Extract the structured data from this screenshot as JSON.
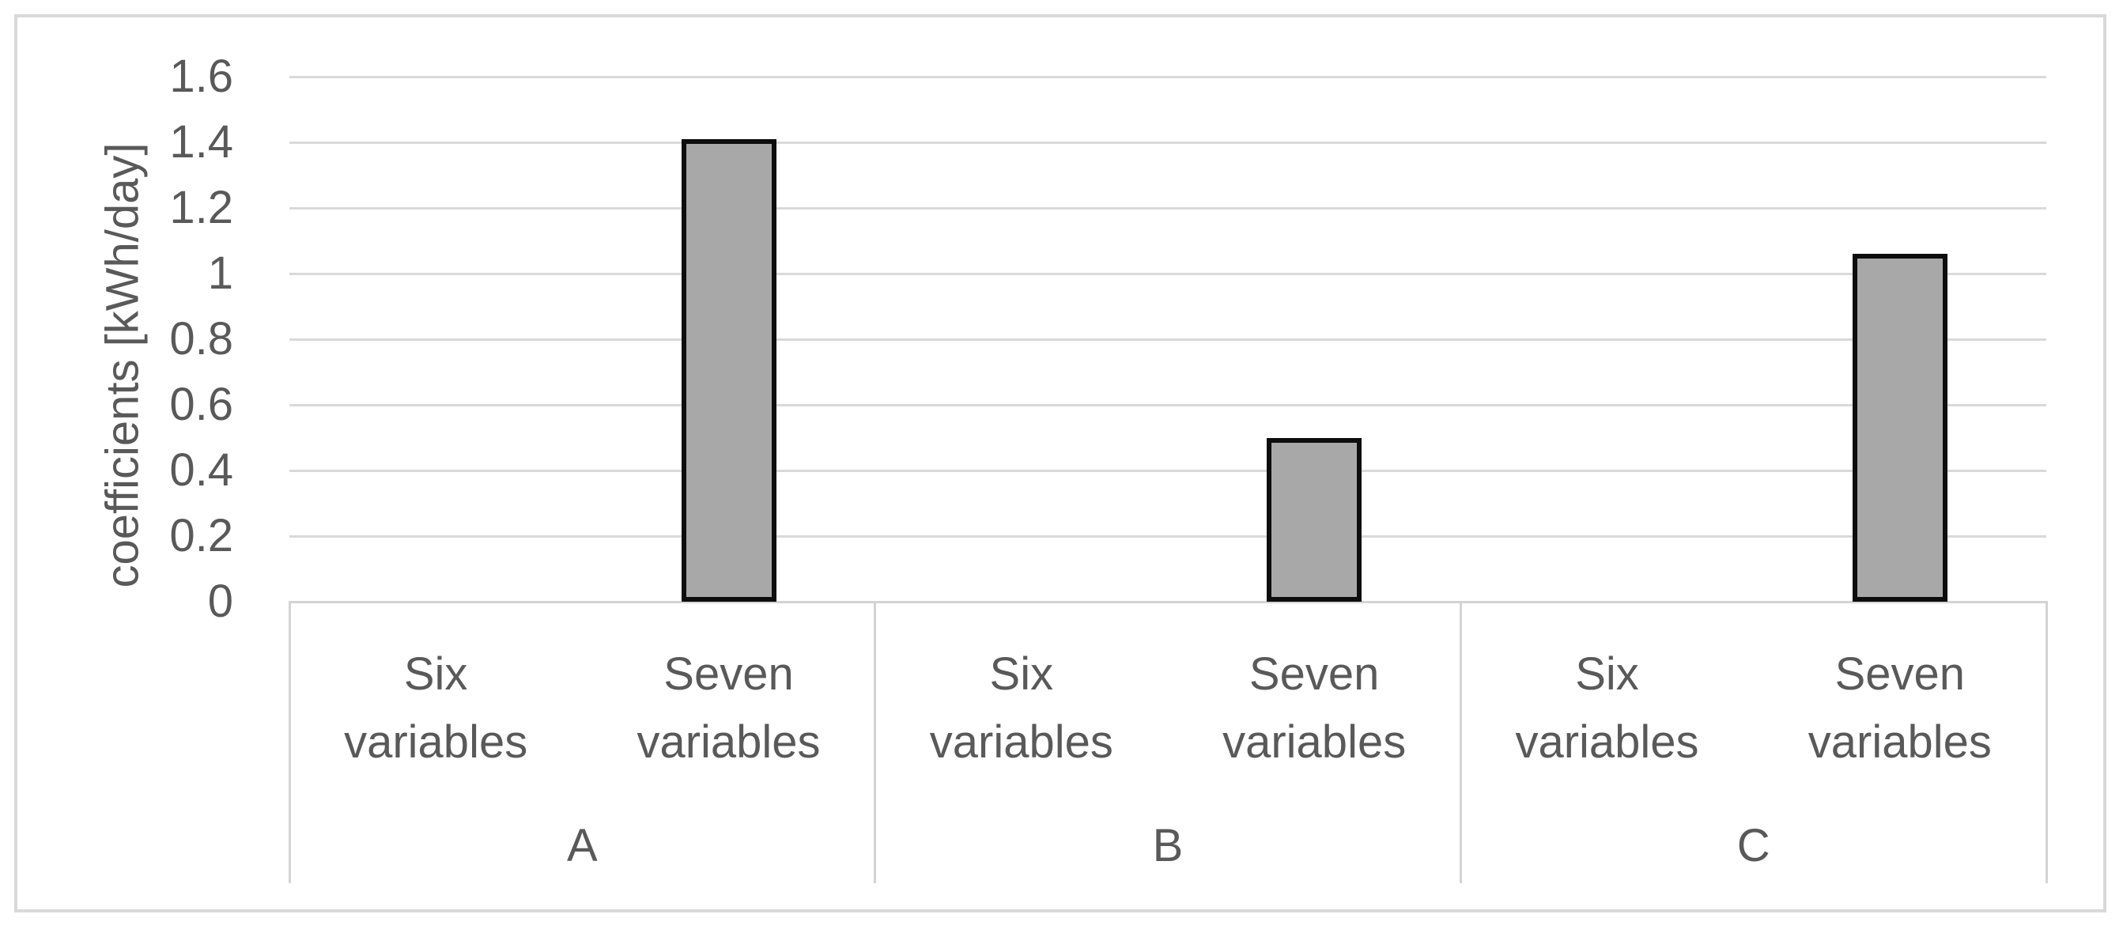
{
  "page": {
    "background_color": "#ffffff",
    "frame_border_color": "#d9d9d9"
  },
  "chart_data": {
    "type": "bar",
    "title": "",
    "xlabel": "",
    "ylabel": "coefficients [kWh/day]",
    "ylim": [
      0,
      1.6
    ],
    "ytick_step": 0.2,
    "y_tick_labels": [
      "1.6",
      "1.4",
      "1.2",
      "1",
      "0.8",
      "0.6",
      "0.4",
      "0.2",
      "0"
    ],
    "grid": true,
    "legend_position": "none",
    "groups": [
      "A",
      "B",
      "C"
    ],
    "categories_per_group": [
      "Six variables",
      "Seven variables"
    ],
    "series": [
      {
        "name": "Six variables",
        "values": [
          0,
          0,
          0
        ]
      },
      {
        "name": "Seven variables",
        "values": [
          1.41,
          0.5,
          1.06
        ]
      }
    ],
    "bar_fill_color": "#a8a8a8",
    "bar_border_color": "#0d0d0d",
    "gridline_color": "#d9d9d9",
    "text_color": "#595959"
  }
}
